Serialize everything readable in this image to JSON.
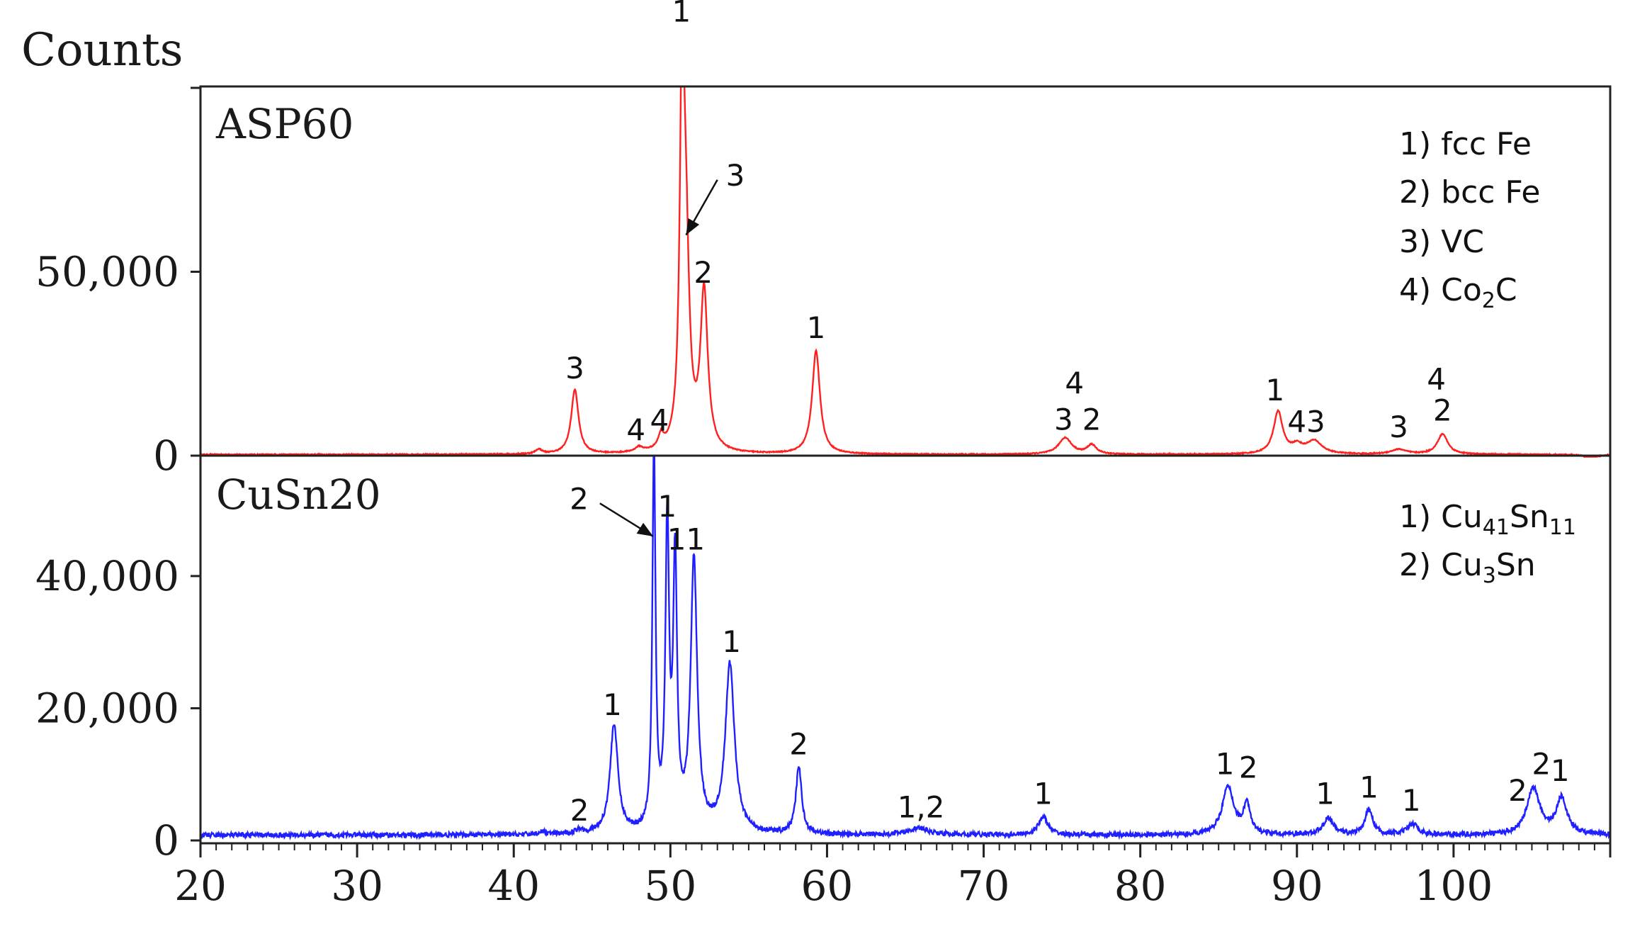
{
  "chart_data": {
    "type": "line",
    "ylabel": "Counts",
    "x_ticks": [
      "20",
      "30",
      "40",
      "50",
      "60",
      "70",
      "80",
      "90",
      "100"
    ],
    "xlim": [
      20,
      110
    ],
    "panels": [
      {
        "name": "ASP60",
        "color": "#ff2020",
        "ylim": [
          0,
          100000
        ],
        "y_ticks": [
          {
            "value": 0,
            "label": "0"
          },
          {
            "value": 50000,
            "label": "50,000"
          },
          {
            "value": 100000,
            "label": ""
          }
        ],
        "baseline": 300,
        "peaks": [
          {
            "x": 41.6,
            "h": 1200,
            "w": 0.25
          },
          {
            "x": 43.9,
            "h": 17500,
            "w": 0.28
          },
          {
            "x": 48.0,
            "h": 1300,
            "w": 0.3
          },
          {
            "x": 49.4,
            "h": 3500,
            "w": 0.2
          },
          {
            "x": 50.75,
            "h": 100000,
            "w": 0.17
          },
          {
            "x": 51.0,
            "h": 48000,
            "w": 0.25
          },
          {
            "x": 52.15,
            "h": 43000,
            "w": 0.28
          },
          {
            "x": 59.3,
            "h": 28000,
            "w": 0.3
          },
          {
            "x": 75.2,
            "h": 4500,
            "w": 0.5
          },
          {
            "x": 76.9,
            "h": 2500,
            "w": 0.35
          },
          {
            "x": 88.8,
            "h": 11500,
            "w": 0.35
          },
          {
            "x": 90.0,
            "h": 2000,
            "w": 0.4
          },
          {
            "x": 91.1,
            "h": 3500,
            "w": 0.6
          },
          {
            "x": 96.5,
            "h": 1300,
            "w": 0.6
          },
          {
            "x": 99.3,
            "h": 5500,
            "w": 0.4
          },
          {
            "x": 108.8,
            "h": -1200,
            "w": 0.4
          }
        ],
        "labels": [
          {
            "text": "1",
            "x": 50.7,
            "y": 118000
          },
          {
            "text": "3",
            "x": 43.9,
            "y": 21000
          },
          {
            "text": "4",
            "x": 47.8,
            "y": 4200
          },
          {
            "text": "4",
            "x": 49.3,
            "y": 6800
          },
          {
            "text": "2",
            "x": 52.1,
            "y": 47000
          },
          {
            "text": "1",
            "x": 59.3,
            "y": 32000
          },
          {
            "text": "3",
            "x": 75.1,
            "y": 7000
          },
          {
            "text": "2",
            "x": 76.9,
            "y": 7000
          },
          {
            "text": "4",
            "x": 75.8,
            "y": 17000
          },
          {
            "text": "1",
            "x": 88.6,
            "y": 15000
          },
          {
            "text": "4",
            "x": 90.0,
            "y": 6500
          },
          {
            "text": "3",
            "x": 91.2,
            "y": 6500
          },
          {
            "text": "3",
            "x": 96.5,
            "y": 5000
          },
          {
            "text": "4",
            "x": 98.9,
            "y": 18000
          },
          {
            "text": "2",
            "x": 99.3,
            "y": 9500
          }
        ],
        "annotations": [
          {
            "text": "3",
            "from": [
              53.0,
              75000
            ],
            "to": [
              51.0,
              60000
            ]
          }
        ],
        "legend": [
          "1)  fcc Fe",
          "2)  bcc Fe",
          "3)  VC",
          "4)  Co2C"
        ]
      },
      {
        "name": "CuSn20",
        "color": "#1f1fff",
        "ylim": [
          0,
          58000
        ],
        "y_ticks": [
          {
            "value": 0,
            "label": "0"
          },
          {
            "value": 20000,
            "label": "20,000"
          },
          {
            "value": 40000,
            "label": "40,000"
          }
        ],
        "baseline": 800,
        "peaks": [
          {
            "x": 41.8,
            "h": 400,
            "w": 0.25
          },
          {
            "x": 44.2,
            "h": 600,
            "w": 0.3
          },
          {
            "x": 46.4,
            "h": 16500,
            "w": 0.3
          },
          {
            "x": 48.95,
            "h": 58000,
            "w": 0.12
          },
          {
            "x": 49.8,
            "h": 45500,
            "w": 0.14
          },
          {
            "x": 50.3,
            "h": 40000,
            "w": 0.15
          },
          {
            "x": 51.5,
            "h": 41000,
            "w": 0.25
          },
          {
            "x": 53.8,
            "h": 25500,
            "w": 0.35
          },
          {
            "x": 58.2,
            "h": 10200,
            "w": 0.22
          },
          {
            "x": 65.8,
            "h": 1000,
            "w": 0.8
          },
          {
            "x": 73.8,
            "h": 2800,
            "w": 0.35
          },
          {
            "x": 85.6,
            "h": 7200,
            "w": 0.45
          },
          {
            "x": 86.8,
            "h": 4500,
            "w": 0.25
          },
          {
            "x": 92.0,
            "h": 2500,
            "w": 0.4
          },
          {
            "x": 94.6,
            "h": 3800,
            "w": 0.3
          },
          {
            "x": 97.4,
            "h": 1600,
            "w": 0.4
          },
          {
            "x": 105.1,
            "h": 7000,
            "w": 0.5
          },
          {
            "x": 106.9,
            "h": 5500,
            "w": 0.4
          }
        ],
        "labels": [
          {
            "text": "2",
            "x": 44.2,
            "y": 3000
          },
          {
            "text": "1",
            "x": 46.3,
            "y": 19000
          },
          {
            "text": "1",
            "x": 49.8,
            "y": 49000
          },
          {
            "text": "1",
            "x": 50.4,
            "y": 44000
          },
          {
            "text": "1",
            "x": 51.6,
            "y": 44000
          },
          {
            "text": "1",
            "x": 53.9,
            "y": 28500
          },
          {
            "text": "2",
            "x": 58.2,
            "y": 13000
          },
          {
            "text": "1,2",
            "x": 66.0,
            "y": 3500
          },
          {
            "text": "1",
            "x": 73.8,
            "y": 5500
          },
          {
            "text": "1",
            "x": 85.4,
            "y": 10000
          },
          {
            "text": "2",
            "x": 86.9,
            "y": 9500
          },
          {
            "text": "1",
            "x": 91.8,
            "y": 5500
          },
          {
            "text": "1",
            "x": 94.6,
            "y": 6500
          },
          {
            "text": "1",
            "x": 97.3,
            "y": 4500
          },
          {
            "text": "2",
            "x": 104.1,
            "y": 6000
          },
          {
            "text": "2",
            "x": 105.6,
            "y": 10000
          },
          {
            "text": "1",
            "x": 106.8,
            "y": 9000
          }
        ],
        "annotations": [
          {
            "text": "2",
            "from": [
              45.5,
              51000
            ],
            "to": [
              48.9,
              46000
            ]
          }
        ],
        "legend": [
          "1) Cu41Sn11",
          "2) Cu3Sn"
        ]
      }
    ]
  }
}
